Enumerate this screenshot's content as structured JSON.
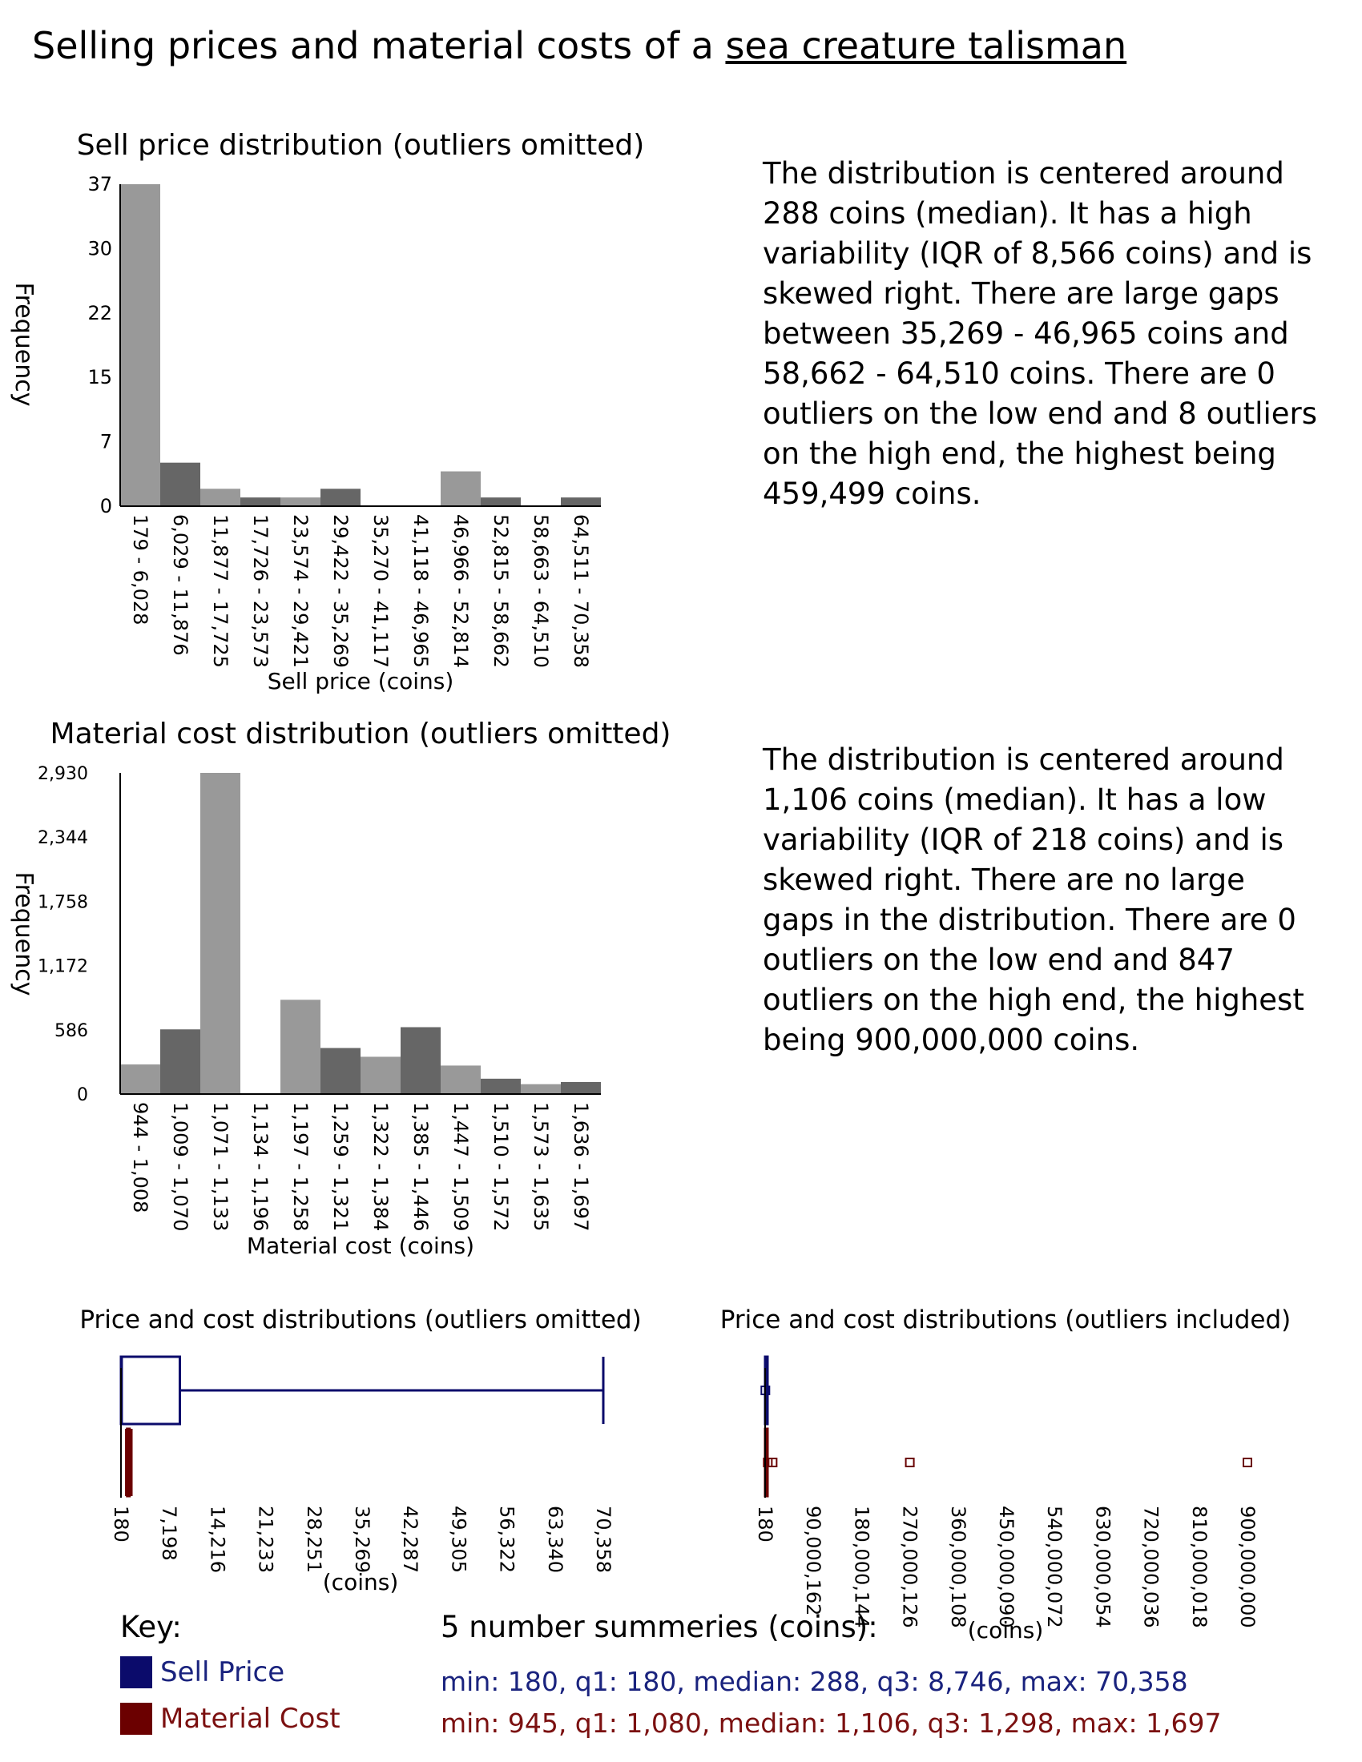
{
  "title": {
    "prefix": "Selling prices and material costs of a ",
    "item": "sea creature talisman"
  },
  "colors": {
    "sell": "#0b0b6b",
    "material": "#6b0000",
    "bar_light": "#999999",
    "bar_dark": "#666666"
  },
  "descriptions": {
    "sell": "The distribution is centered around 288 coins (median). It has a high variability (IQR of 8,566 coins) and is skewed right. There are large gaps between 35,269 - 46,965 coins and 58,662 - 64,510 coins. There are 0 outliers on the low end and 8 outliers on the high end, the highest being 459,499 coins.",
    "material": "The distribution is centered around 1,106 coins (median). It has a low variability (IQR of 218 coins) and is skewed right. There are no large gaps in the distribution. There are 0 outliers on the low end and 847 outliers on the high end, the highest being 900,000,000 coins."
  },
  "chart_data": [
    {
      "type": "bar",
      "title": "Sell price distribution (outliers omitted)",
      "xlabel": "Sell price (coins)",
      "ylabel": "Frequency",
      "ylim": [
        0,
        37
      ],
      "yticks": [
        "0",
        "7",
        "15",
        "22",
        "30",
        "37"
      ],
      "categories": [
        "179 - 6,028",
        "6,029 - 11,876",
        "11,877 - 17,725",
        "17,726 - 23,573",
        "23,574 - 29,421",
        "29,422 - 35,269",
        "35,270 - 41,117",
        "41,118 - 46,965",
        "46,966 - 52,814",
        "52,815 - 58,662",
        "58,663 - 64,510",
        "64,511 - 70,358"
      ],
      "values": [
        37,
        5,
        2,
        1,
        1,
        2,
        0,
        0,
        4,
        1,
        0,
        1
      ]
    },
    {
      "type": "bar",
      "title": "Material cost distribution (outliers omitted)",
      "xlabel": "Material cost (coins)",
      "ylabel": "Frequency",
      "ylim": [
        0,
        2930
      ],
      "yticks": [
        "0",
        "586",
        "1,172",
        "1,758",
        "2,344",
        "2,930"
      ],
      "categories": [
        "944 - 1,008",
        "1,009 - 1,070",
        "1,071 - 1,133",
        "1,134 - 1,196",
        "1,197 - 1,258",
        "1,259 - 1,321",
        "1,322 - 1,384",
        "1,385 - 1,446",
        "1,447 - 1,509",
        "1,510 - 1,572",
        "1,573 - 1,635",
        "1,636 - 1,697"
      ],
      "values": [
        270,
        590,
        2930,
        0,
        860,
        420,
        340,
        610,
        260,
        140,
        90,
        110
      ]
    },
    {
      "type": "boxplot",
      "title": "Price and cost distributions (outliers omitted)",
      "xlabel": "(coins)",
      "xlim": [
        180,
        70358
      ],
      "xticks": [
        "180",
        "7,198",
        "14,216",
        "21,233",
        "28,251",
        "35,269",
        "42,287",
        "49,305",
        "56,322",
        "63,340",
        "70,358"
      ],
      "series": [
        {
          "name": "Sell Price",
          "min": 180,
          "q1": 180,
          "median": 288,
          "q3": 8746,
          "max": 70358,
          "outliers": []
        },
        {
          "name": "Material Cost",
          "min": 945,
          "q1": 1080,
          "median": 1106,
          "q3": 1298,
          "max": 1697,
          "outliers": []
        }
      ]
    },
    {
      "type": "boxplot",
      "title": "Price and cost distributions (outliers included)",
      "xlabel": "(coins)",
      "xlim": [
        180,
        900000000
      ],
      "xticks": [
        "180",
        "90,000,162",
        "180,000,144",
        "270,000,126",
        "360,000,108",
        "450,000,090",
        "540,000,072",
        "630,000,054",
        "720,000,036",
        "810,000,018",
        "900,000,000"
      ],
      "series": [
        {
          "name": "Sell Price",
          "min": 180,
          "q1": 180,
          "median": 288,
          "q3": 8746,
          "max": 70358,
          "outliers": [
            459499
          ]
        },
        {
          "name": "Material Cost",
          "min": 945,
          "q1": 1080,
          "median": 1106,
          "q3": 1298,
          "max": 1697,
          "outliers": [
            5000000,
            14000000,
            270000000,
            900000000
          ]
        }
      ]
    }
  ],
  "key": {
    "title": "Key:",
    "sell_label": "Sell Price",
    "material_label": "Material Cost"
  },
  "summaries": {
    "title": "5 number summeries (coins):",
    "sell": "min: 180, q1: 180, median: 288, q3: 8,746, max: 70,358",
    "material": "min: 945, q1: 1,080, median: 1,106, q3: 1,298, max: 1,697"
  }
}
